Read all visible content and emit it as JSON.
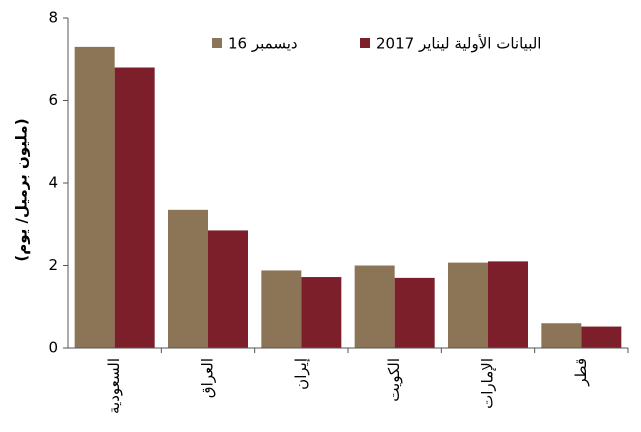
{
  "chart_data": {
    "type": "bar",
    "y_label": "(مليون برميل/ يوم)",
    "categories": [
      "السعودية",
      "العراق",
      "إيران",
      "الكويت",
      "الإمارات",
      "قطر"
    ],
    "series": [
      {
        "name": "ديسمبر 16",
        "color": "#8c7456",
        "values": [
          7.3,
          3.35,
          1.88,
          2.0,
          2.07,
          0.6
        ]
      },
      {
        "name": "البيانات الأولية ليناير 2017",
        "color": "#7d1f2a",
        "values": [
          6.8,
          2.85,
          1.72,
          1.7,
          2.1,
          0.52
        ]
      }
    ],
    "ylim": [
      0,
      8
    ],
    "yticks": [
      0,
      2,
      4,
      6,
      8
    ],
    "grid": false,
    "legend": "top"
  }
}
